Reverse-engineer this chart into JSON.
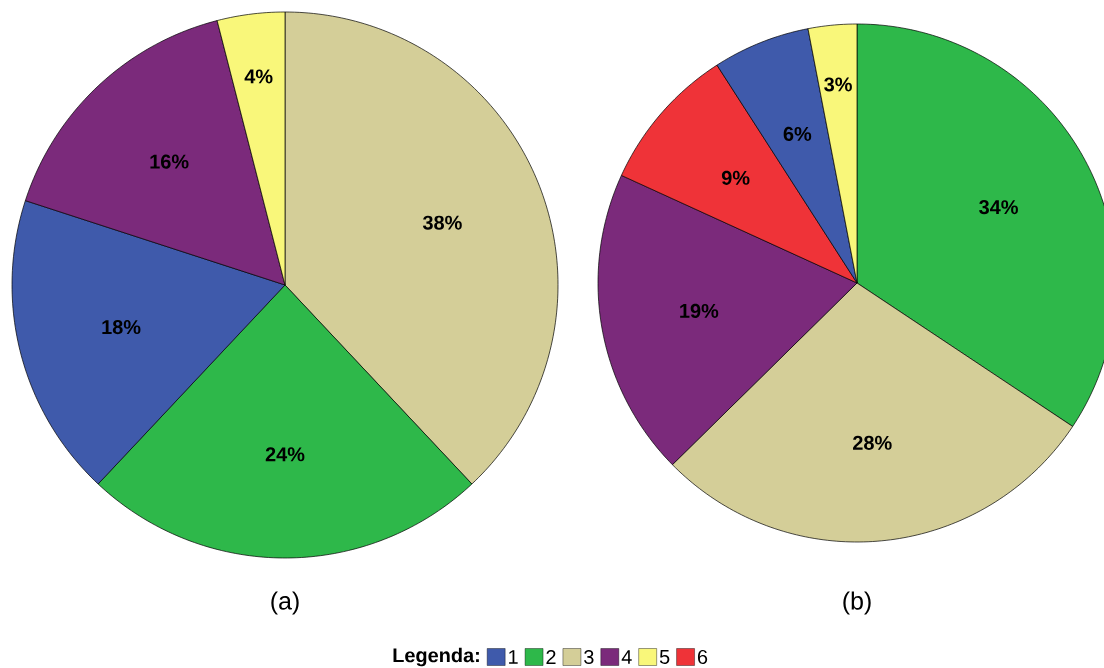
{
  "chart_data": [
    {
      "type": "pie",
      "title": "(a)",
      "categories": [
        null,
        null,
        null,
        null,
        null
      ],
      "values": [
        38,
        24,
        18,
        16,
        4
      ],
      "colors": [
        "#d4ce98",
        "#2eb84a",
        "#3f5aab",
        "#7b2a7b",
        "#f9f77a"
      ],
      "value_labels": [
        "38%",
        "24%",
        "18%",
        "16%",
        "4%"
      ]
    },
    {
      "type": "pie",
      "title": "(b)",
      "categories": [
        "2",
        "3",
        "4",
        "6",
        "1",
        "5"
      ],
      "values": [
        34,
        28,
        19,
        9,
        6,
        3
      ],
      "colors": [
        "#2eb84a",
        "#d4ce98",
        "#7b2a7b",
        "#ef3338",
        "#3f5aab",
        "#f9f77a"
      ],
      "value_labels": [
        "34%",
        "28%",
        "19%",
        "9%",
        "6%",
        "3%"
      ],
      "legend": "bottom",
      "legend_title": "Legenda:"
    }
  ]
}
